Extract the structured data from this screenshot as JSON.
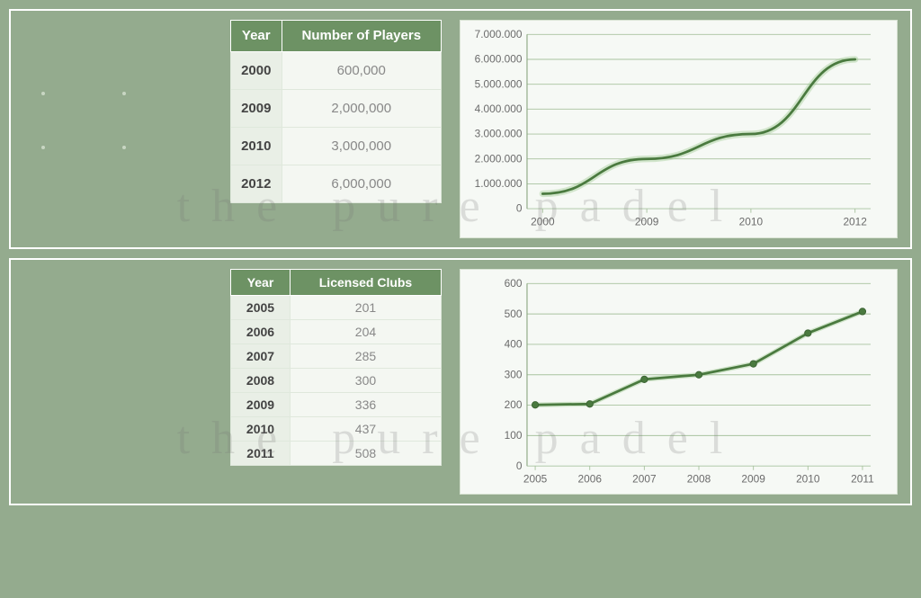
{
  "watermark_text": "the pure padel",
  "colors": {
    "panel_bg": "#94ab8e",
    "panel_border": "#ffffff",
    "table_header_bg": "#6d9264",
    "table_header_fg": "#ffffff",
    "row_year_bg": "#e9efe6",
    "row_val_bg": "#f4f7f2",
    "row_val_fg": "#888888",
    "chart_bg": "#f6f9f5",
    "grid": "#a8c39f",
    "line": "#4a7a3f",
    "glow": "#8bbf7f"
  },
  "panel1": {
    "table": {
      "columns": [
        "Year",
        "Number of Players"
      ],
      "rows": [
        [
          "2000",
          "600,000"
        ],
        [
          "2009",
          "2,000,000"
        ],
        [
          "2010",
          "3,000,000"
        ],
        [
          "2012",
          "6,000,000"
        ]
      ]
    },
    "chart": {
      "type": "line",
      "x_categories": [
        "2000",
        "2009",
        "2010",
        "2012"
      ],
      "y_values": [
        600000,
        2000000,
        3000000,
        6000000
      ],
      "y_ticks": [
        0,
        1000000,
        2000000,
        3000000,
        4000000,
        5000000,
        6000000,
        7000000
      ],
      "y_tick_labels": [
        "0",
        "1.000.000",
        "2.000.000",
        "3.000.000",
        "4.000.000",
        "5.000.000",
        "6.000.000",
        "7.000.000"
      ],
      "ylim": [
        0,
        7000000
      ],
      "line_width": 3,
      "glow_width": 8,
      "markers": false,
      "curve": true
    }
  },
  "panel2": {
    "table": {
      "columns": [
        "Year",
        "Licensed Clubs"
      ],
      "rows": [
        [
          "2005",
          "201"
        ],
        [
          "2006",
          "204"
        ],
        [
          "2007",
          "285"
        ],
        [
          "2008",
          "300"
        ],
        [
          "2009",
          "336"
        ],
        [
          "2010",
          "437"
        ],
        [
          "2011",
          "508"
        ]
      ]
    },
    "chart": {
      "type": "line",
      "x_categories": [
        "2005",
        "2006",
        "2007",
        "2008",
        "2009",
        "2010",
        "2011"
      ],
      "y_values": [
        201,
        204,
        285,
        300,
        336,
        437,
        508
      ],
      "y_ticks": [
        0,
        100,
        200,
        300,
        400,
        500,
        600
      ],
      "y_tick_labels": [
        "0",
        "100",
        "200",
        "300",
        "400",
        "500",
        "600"
      ],
      "ylim": [
        0,
        600
      ],
      "line_width": 3,
      "glow_width": 6,
      "markers": true,
      "marker_radius": 4,
      "curve": false
    }
  }
}
